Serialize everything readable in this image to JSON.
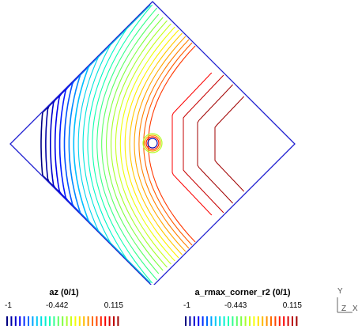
{
  "legends": [
    {
      "title": "az (0/1)",
      "min_label": "-1",
      "mid_label": "-0.442",
      "max_label": "0.115",
      "bar_count": 27
    },
    {
      "title": "a_rmax_corner_r2 (0/1)",
      "min_label": "-1",
      "mid_label": "-0.443",
      "max_label": "0.115",
      "bar_count": 27
    }
  ],
  "axis": {
    "y_label": "Y",
    "z_label": "Z",
    "x_label": "X"
  },
  "colors": {
    "boundary": "#1f1fd0",
    "palette": [
      "#000080",
      "#0000ff",
      "#00c0ff",
      "#00ffc0",
      "#80ff40",
      "#ffff00",
      "#ff8000",
      "#ff0000",
      "#a00000"
    ]
  }
}
